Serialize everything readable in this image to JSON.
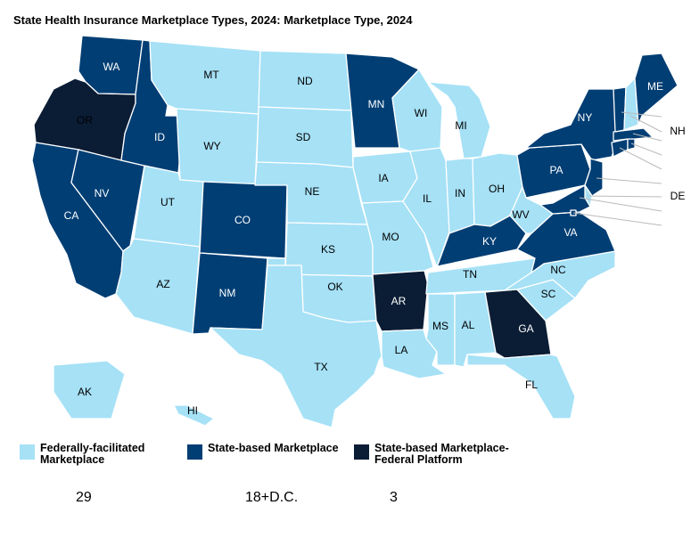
{
  "title": "State Health Insurance Marketplace Types, 2024: Marketplace Type, 2024",
  "colors": {
    "federal": "#a6e1f6",
    "state": "#003e74",
    "state_federal": "#0b1d35",
    "dark_label": "#000000",
    "light_label": "#ffffff"
  },
  "legend": [
    {
      "key": "federal",
      "label": "Federally-facilitated Marketplace",
      "count": "29"
    },
    {
      "key": "state",
      "label": "State-based Marketplace",
      "count": "18+D.C."
    },
    {
      "key": "state_federal",
      "label": "State-based Marketplace-Federal Platform",
      "count": "3"
    }
  ],
  "states": {
    "AK": "federal",
    "AL": "federal",
    "AZ": "federal",
    "FL": "federal",
    "HI": "federal",
    "IA": "federal",
    "IL": "federal",
    "IN": "federal",
    "KS": "federal",
    "LA": "federal",
    "MI": "federal",
    "MO": "federal",
    "MS": "federal",
    "MT": "federal",
    "NC": "federal",
    "ND": "federal",
    "NE": "federal",
    "NH": "federal",
    "DE": "federal",
    "OH": "federal",
    "OK": "federal",
    "SC": "federal",
    "SD": "federal",
    "TN": "federal",
    "TX": "federal",
    "UT": "federal",
    "WI": "federal",
    "WV": "federal",
    "WY": "federal",
    "CA": "state",
    "CO": "state",
    "CT": "state",
    "DC": "state",
    "ID": "state",
    "KY": "state",
    "MA": "state",
    "MD": "state",
    "ME": "state",
    "MN": "state",
    "NJ": "state",
    "NM": "state",
    "NV": "state",
    "NY": "state",
    "PA": "state",
    "RI": "state",
    "VA": "state",
    "VT": "state",
    "WA": "state",
    "AR": "state_federal",
    "GA": "state_federal",
    "OR": "state_federal"
  }
}
